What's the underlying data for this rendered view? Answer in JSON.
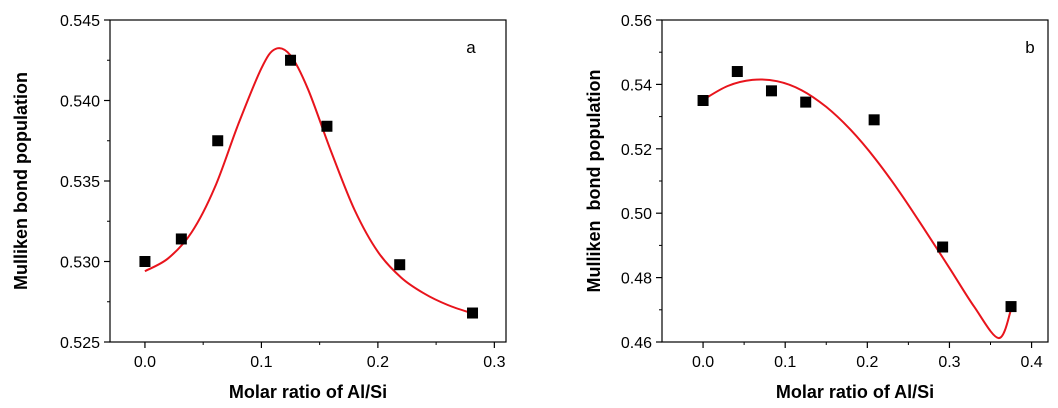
{
  "chart_data": [
    {
      "type": "scatter",
      "panel_label": "a",
      "xlabel": "Molar ratio of Al/Si",
      "ylabel": "Mulliken bond population",
      "xlim": [
        -0.03,
        0.31
      ],
      "ylim": [
        0.525,
        0.545
      ],
      "xticks": [
        0.0,
        0.1,
        0.2,
        0.3
      ],
      "xtick_labels": [
        "0.0",
        "0.1",
        "0.2",
        "0.3"
      ],
      "yticks": [
        0.525,
        0.53,
        0.535,
        0.54,
        0.545
      ],
      "ytick_labels": [
        "0.525",
        "0.530",
        "0.535",
        "0.540",
        "0.545"
      ],
      "grid": false,
      "marker_color": "#000000",
      "fit_color": "#e8141c",
      "points": [
        {
          "x": 0.0,
          "y": 0.53
        },
        {
          "x": 0.03125,
          "y": 0.5314
        },
        {
          "x": 0.0625,
          "y": 0.5375
        },
        {
          "x": 0.125,
          "y": 0.5425
        },
        {
          "x": 0.15625,
          "y": 0.5384
        },
        {
          "x": 0.21875,
          "y": 0.5298
        },
        {
          "x": 0.28125,
          "y": 0.5268
        }
      ],
      "fit_curve": [
        {
          "x": 0.0,
          "y": 0.5294
        },
        {
          "x": 0.02,
          "y": 0.5302
        },
        {
          "x": 0.04,
          "y": 0.5318
        },
        {
          "x": 0.06,
          "y": 0.5346
        },
        {
          "x": 0.08,
          "y": 0.5385
        },
        {
          "x": 0.1,
          "y": 0.542
        },
        {
          "x": 0.112,
          "y": 0.5432
        },
        {
          "x": 0.125,
          "y": 0.5428
        },
        {
          "x": 0.14,
          "y": 0.5407
        },
        {
          "x": 0.16,
          "y": 0.5368
        },
        {
          "x": 0.18,
          "y": 0.5332
        },
        {
          "x": 0.2,
          "y": 0.5306
        },
        {
          "x": 0.22,
          "y": 0.529
        },
        {
          "x": 0.24,
          "y": 0.528
        },
        {
          "x": 0.26,
          "y": 0.5273
        },
        {
          "x": 0.28,
          "y": 0.5268
        }
      ]
    },
    {
      "type": "scatter",
      "panel_label": "b",
      "xlabel": "Molar ratio of Al/Si",
      "ylabel": "Mulliken  bond population",
      "xlim": [
        -0.05,
        0.42
      ],
      "ylim": [
        0.46,
        0.56
      ],
      "xticks": [
        0.0,
        0.1,
        0.2,
        0.3,
        0.4
      ],
      "xtick_labels": [
        "0.0",
        "0.1",
        "0.2",
        "0.3",
        "0.4"
      ],
      "yticks": [
        0.46,
        0.48,
        0.5,
        0.52,
        0.54,
        0.56
      ],
      "ytick_labels": [
        "0.46",
        "0.48",
        "0.50",
        "0.52",
        "0.54",
        "0.56"
      ],
      "grid": false,
      "marker_color": "#000000",
      "fit_color": "#e8141c",
      "points": [
        {
          "x": 0.0,
          "y": 0.535
        },
        {
          "x": 0.0417,
          "y": 0.544
        },
        {
          "x": 0.0833,
          "y": 0.538
        },
        {
          "x": 0.125,
          "y": 0.5345
        },
        {
          "x": 0.2083,
          "y": 0.529
        },
        {
          "x": 0.2917,
          "y": 0.4895
        },
        {
          "x": 0.375,
          "y": 0.471
        }
      ],
      "fit_curve": [
        {
          "x": 0.0,
          "y": 0.5352
        },
        {
          "x": 0.03,
          "y": 0.5395
        },
        {
          "x": 0.06,
          "y": 0.5414
        },
        {
          "x": 0.09,
          "y": 0.541
        },
        {
          "x": 0.12,
          "y": 0.5382
        },
        {
          "x": 0.15,
          "y": 0.533
        },
        {
          "x": 0.18,
          "y": 0.5258
        },
        {
          "x": 0.21,
          "y": 0.5168
        },
        {
          "x": 0.24,
          "y": 0.5063
        },
        {
          "x": 0.27,
          "y": 0.4948
        },
        {
          "x": 0.3,
          "y": 0.483
        },
        {
          "x": 0.33,
          "y": 0.471
        },
        {
          "x": 0.36,
          "y": 0.4612
        },
        {
          "x": 0.375,
          "y": 0.47
        }
      ]
    }
  ]
}
